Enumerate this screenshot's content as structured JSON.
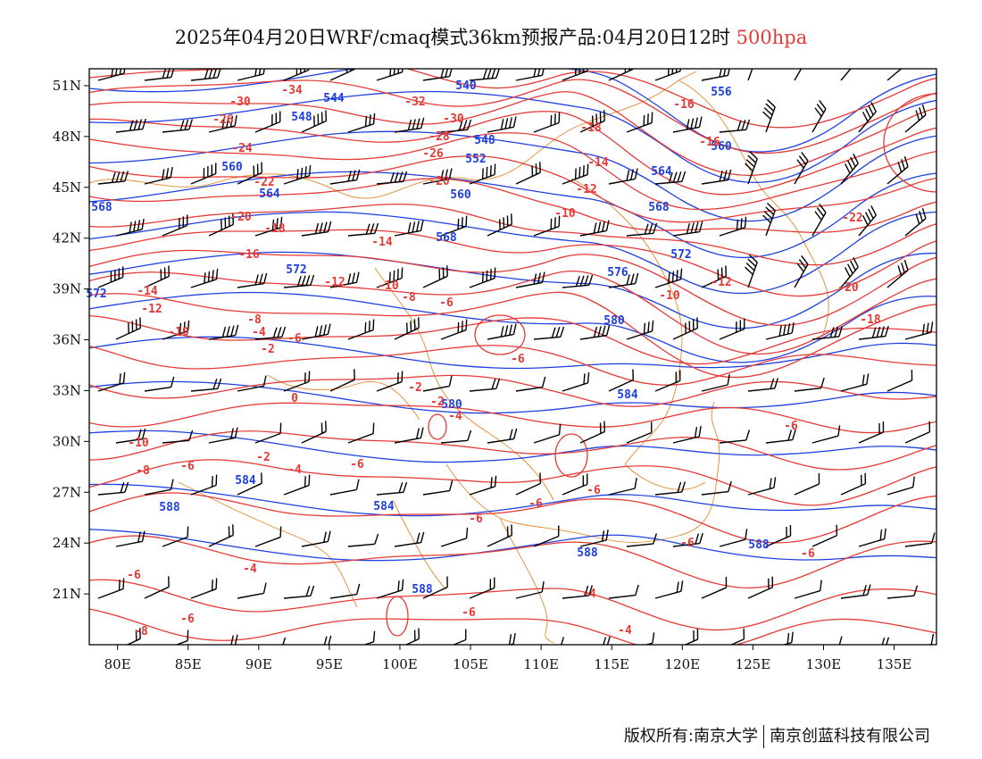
{
  "title": {
    "main": "2025年04月20日WRF/cmaq模式36km预报产品:04月20日12时",
    "level": "500hpa"
  },
  "map": {
    "lon_range": [
      78,
      138
    ],
    "lat_range": [
      18,
      52
    ],
    "lat_ticks": [
      "51N",
      "48N",
      "45N",
      "42N",
      "39N",
      "36N",
      "33N",
      "30N",
      "27N",
      "24N",
      "21N"
    ],
    "lon_ticks": [
      "80E",
      "85E",
      "90E",
      "95E",
      "100E",
      "105E",
      "110E",
      "115E",
      "120E",
      "125E",
      "130E",
      "135E"
    ],
    "colors": {
      "temperature": "#e53935",
      "height": "#1e3fe0",
      "wind": "#000000",
      "boundary": "#e08a2c"
    }
  },
  "height_labels": [
    "540",
    "556",
    "544",
    "548",
    "552",
    "560",
    "564",
    "568",
    "572",
    "576",
    "580",
    "584",
    "588"
  ],
  "temperature_labels": [
    "-34",
    "-32",
    "-30",
    "-28",
    "-26",
    "-24",
    "-22",
    "-20",
    "-18",
    "-16",
    "-14",
    "-12",
    "-10",
    "-8",
    "-6",
    "-4",
    "-2",
    "0"
  ],
  "copyright": {
    "left": "版权所有:南京大学",
    "right": "南京创蓝科技有限公司"
  }
}
